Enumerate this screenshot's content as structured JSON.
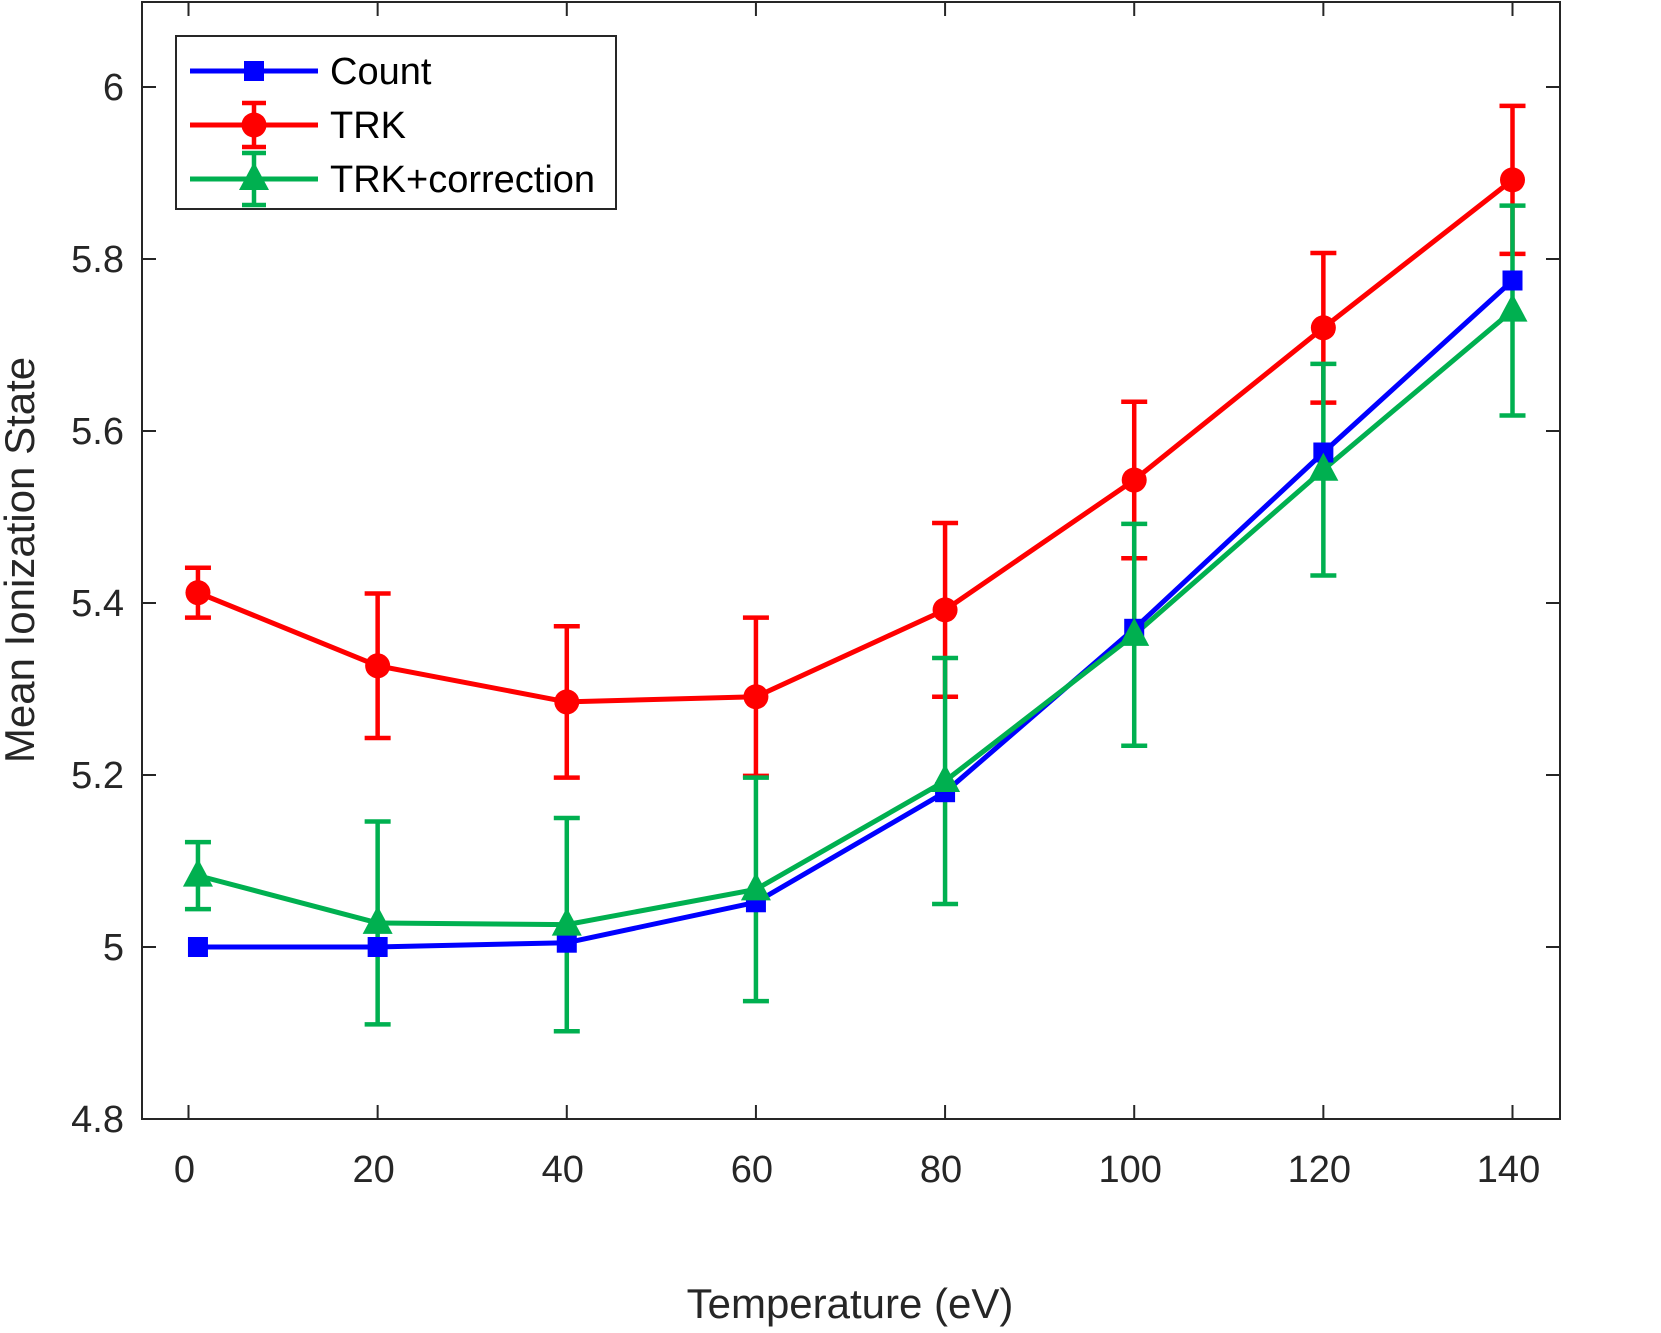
{
  "chart_data": {
    "type": "line",
    "title": "",
    "xlabel": "Temperature (eV)",
    "ylabel": "Mean Ionization State",
    "xlim": [
      -5,
      145
    ],
    "ylim": [
      4.8,
      6.1
    ],
    "xticks": [
      0,
      20,
      40,
      60,
      80,
      100,
      120,
      140
    ],
    "xtick_labels": [
      "0",
      "20",
      "40",
      "60",
      "80",
      "100",
      "120",
      "140"
    ],
    "yticks": [
      4.8,
      5.0,
      5.2,
      5.4,
      5.6,
      5.8,
      6.0
    ],
    "ytick_labels": [
      "4.8",
      "5",
      "5.2",
      "5.4",
      "5.6",
      "5.8",
      "6"
    ],
    "grid": false,
    "legend_position": "top-left",
    "series": [
      {
        "name": "Count",
        "color": "#0000FF",
        "marker": "square",
        "x": [
          1,
          20,
          40,
          60,
          80,
          100,
          120,
          140
        ],
        "y": [
          5.0,
          5.0,
          5.005,
          5.052,
          5.18,
          5.37,
          5.575,
          5.775
        ],
        "err": null
      },
      {
        "name": "TRK",
        "color": "#FF0000",
        "marker": "circle",
        "x": [
          1,
          20,
          40,
          60,
          80,
          100,
          120,
          140
        ],
        "y": [
          5.412,
          5.327,
          5.285,
          5.291,
          5.392,
          5.543,
          5.72,
          5.892
        ],
        "err": [
          0.029,
          0.084,
          0.088,
          0.092,
          0.101,
          0.091,
          0.087,
          0.086
        ]
      },
      {
        "name": "TRK+correction",
        "color": "#00B050",
        "marker": "triangle",
        "x": [
          1,
          20,
          40,
          60,
          80,
          100,
          120,
          140
        ],
        "y": [
          5.083,
          5.028,
          5.026,
          5.067,
          5.193,
          5.363,
          5.555,
          5.74
        ],
        "err": [
          0.039,
          0.118,
          0.124,
          0.13,
          0.143,
          0.129,
          0.123,
          0.122
        ]
      }
    ]
  }
}
